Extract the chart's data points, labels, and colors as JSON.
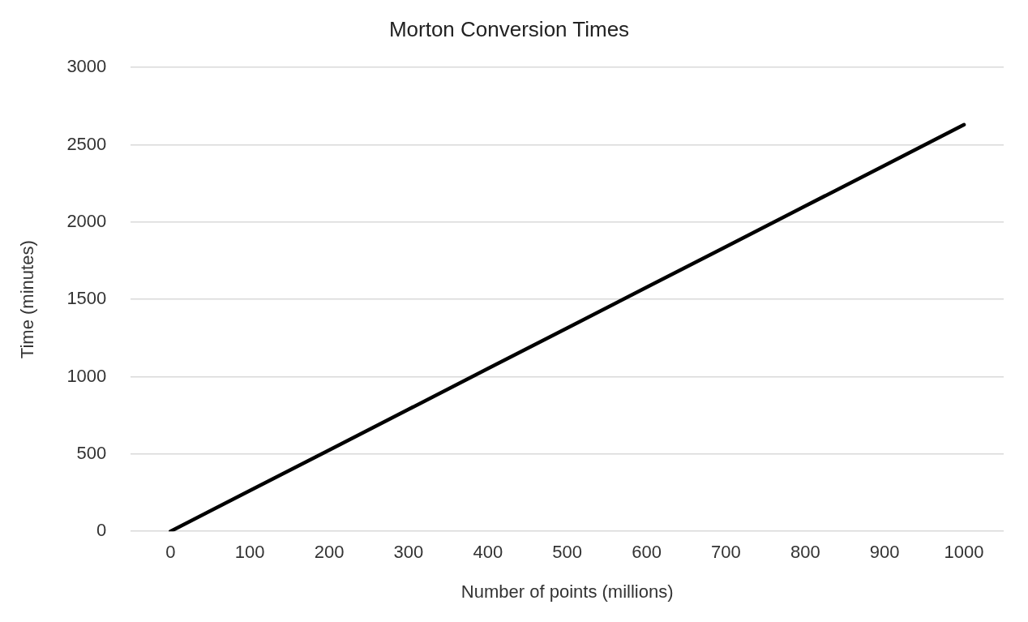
{
  "chart_data": {
    "type": "line",
    "title": "Morton Conversion Times",
    "xlabel": "Number of points (millions)",
    "ylabel": "Time (minutes)",
    "categories": [
      "0",
      "100",
      "200",
      "300",
      "400",
      "500",
      "600",
      "700",
      "800",
      "900",
      "1000"
    ],
    "series": [
      {
        "color": "#000000",
        "values": [
          0,
          263,
          526,
          789,
          1052,
          1315,
          1578,
          1841,
          2104,
          2367,
          2630
        ]
      }
    ],
    "ylim": [
      0,
      3000
    ],
    "yticks": [
      0,
      500,
      1000,
      1500,
      2000,
      2500,
      3000
    ],
    "grid": "y",
    "legend": false,
    "marker": "none",
    "line_style": "solid"
  }
}
